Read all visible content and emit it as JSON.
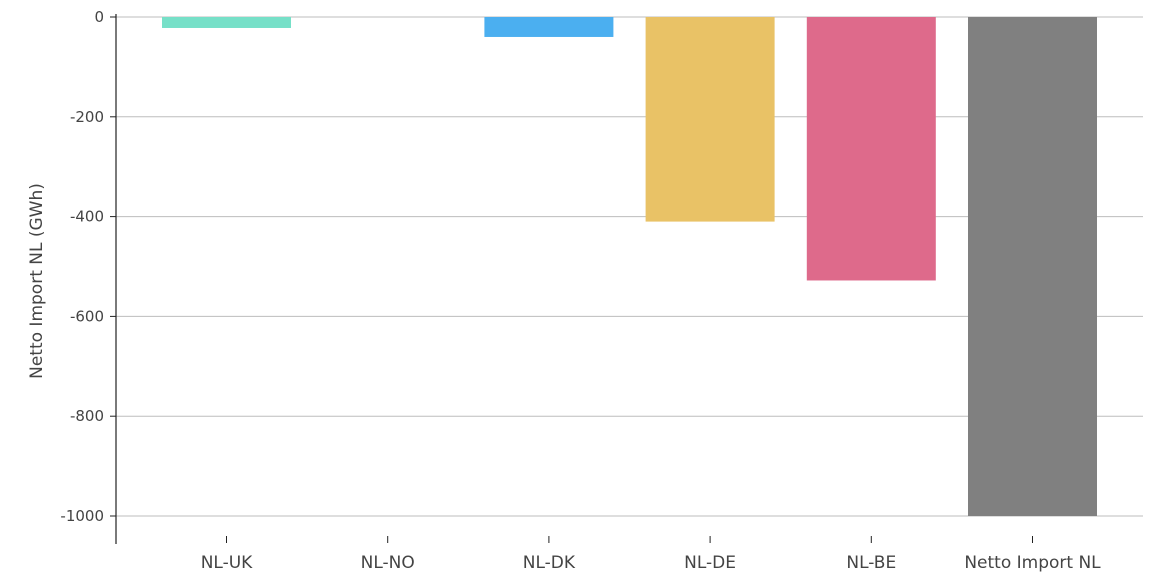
{
  "chart_data": {
    "type": "bar",
    "ylabel": "Netto Import NL (GWh)",
    "ylim": [
      -1000,
      0
    ],
    "yticks": [
      0,
      -200,
      -400,
      -600,
      -800,
      -1000
    ],
    "grid": true,
    "categories": [
      "NL-UK",
      "NL-NO",
      "NL-DK",
      "NL-DE",
      "NL-BE",
      "Netto Import NL"
    ],
    "values": [
      -22,
      0,
      -40,
      -410,
      -528,
      -1000
    ],
    "colors": [
      "#76e0c8",
      "#7fd0e8",
      "#4baff0",
      "#e9c266",
      "#de6a8b",
      "#808080"
    ]
  }
}
